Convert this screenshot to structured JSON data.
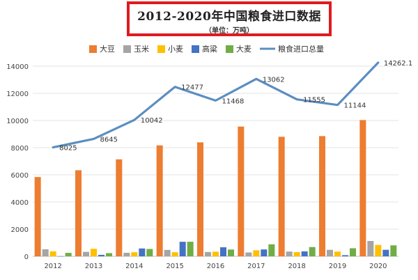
{
  "chart_data": {
    "type": "bar",
    "title": "2012-2020年中国粮食进口数据",
    "subtitle": "（单位：万吨）",
    "categories": [
      "2012",
      "2013",
      "2014",
      "2015",
      "2016",
      "2017",
      "2018",
      "2019",
      "2020"
    ],
    "ylim": [
      0,
      14000
    ],
    "yticks": [
      0,
      2000,
      4000,
      6000,
      8000,
      10000,
      12000,
      14000
    ],
    "grid": true,
    "legend_position": "top",
    "series": [
      {
        "name": "大豆",
        "type": "bar",
        "color": "#ed7d31",
        "values": [
          5838,
          6338,
          7140,
          8169,
          8391,
          9553,
          8803,
          8851,
          10033
        ]
      },
      {
        "name": "玉米",
        "type": "bar",
        "color": "#a5a5a5",
        "values": [
          521,
          327,
          260,
          473,
          317,
          283,
          352,
          479,
          1130
        ]
      },
      {
        "name": "小麦",
        "type": "bar",
        "color": "#ffc000",
        "values": [
          370,
          553,
          300,
          301,
          341,
          442,
          310,
          349,
          838
        ]
      },
      {
        "name": "高粱",
        "type": "bar",
        "color": "#4472c4",
        "values": [
          8,
          108,
          578,
          1070,
          665,
          506,
          365,
          83,
          481
        ]
      },
      {
        "name": "大麦",
        "type": "bar",
        "color": "#70ad47",
        "values": [
          253,
          234,
          541,
          1073,
          500,
          886,
          682,
          593,
          808
        ]
      },
      {
        "name": "粮食进口总量",
        "type": "line",
        "color": "#5b8ec0",
        "values": [
          8025,
          8645,
          10042,
          12477,
          11468,
          13062,
          11555,
          11144,
          14262.1
        ],
        "labels": [
          "8025",
          "8645",
          "10042",
          "12477",
          "11468",
          "13062",
          "11555",
          "11144",
          "14262.1"
        ]
      }
    ]
  }
}
